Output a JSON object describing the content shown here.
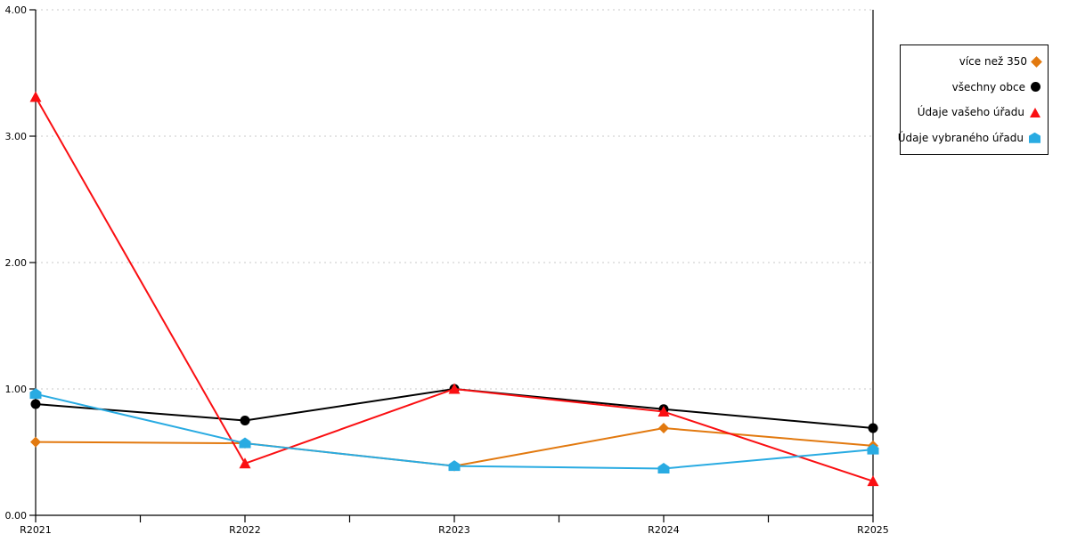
{
  "chart_data": {
    "type": "line",
    "categories": [
      "R2021",
      "R2022",
      "R2023",
      "R2024",
      "R2025"
    ],
    "series": [
      {
        "name": "více než 350",
        "marker": "diamond",
        "color": "#E2790F",
        "values": [
          0.58,
          0.57,
          0.39,
          0.69,
          0.55
        ]
      },
      {
        "name": "všechny obce",
        "marker": "circle",
        "color": "#000000",
        "values": [
          0.88,
          0.75,
          1.0,
          0.84,
          0.69
        ]
      },
      {
        "name": "Údaje vašeho úřadu",
        "marker": "triangle",
        "color": "#FA0F12",
        "values": [
          3.31,
          0.41,
          1.0,
          0.82,
          0.27
        ]
      },
      {
        "name": "Údaje vybraného úřadu",
        "marker": "pentagon",
        "color": "#29ABE2",
        "values": [
          0.96,
          0.57,
          0.39,
          0.37,
          0.52
        ]
      }
    ],
    "title": "",
    "xlabel": "",
    "ylabel": "",
    "ylim": [
      0,
      4
    ],
    "ytick_labels": [
      "0.00",
      "1.00",
      "2.00",
      "3.00",
      "4.00"
    ],
    "grid": "horizontal-dashed",
    "grid_color": "#C9C9C9",
    "axis_color": "#000000",
    "legend_position": "outside-top-right"
  }
}
